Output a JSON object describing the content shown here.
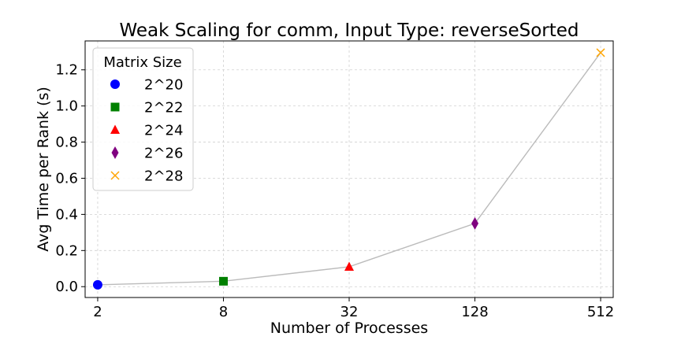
{
  "chart_data": {
    "type": "scatter",
    "title": "Weak Scaling for comm, Input Type: reverseSorted",
    "xlabel": "Number of Processes",
    "ylabel": "Avg Time per Rank (s)",
    "x_scale": "log2",
    "x_ticks": [
      "2",
      "8",
      "32",
      "128",
      "512"
    ],
    "y_ticks": [
      "0.0",
      "0.2",
      "0.4",
      "0.6",
      "0.8",
      "1.0",
      "1.2"
    ],
    "ylim": [
      -0.06,
      1.36
    ],
    "grid": true,
    "line_color": "#bbbbbb",
    "legend": {
      "title": "Matrix Size",
      "placement": "top-left"
    },
    "series": [
      {
        "name": "2^20",
        "x": 2,
        "y": 0.01,
        "marker": "circle",
        "color": "#0000ff"
      },
      {
        "name": "2^22",
        "x": 8,
        "y": 0.03,
        "marker": "square",
        "color": "#008000"
      },
      {
        "name": "2^24",
        "x": 32,
        "y": 0.11,
        "marker": "triangle",
        "color": "#ff0000"
      },
      {
        "name": "2^26",
        "x": 128,
        "y": 0.35,
        "marker": "diamond",
        "color": "#800080"
      },
      {
        "name": "2^28",
        "x": 512,
        "y": 1.295,
        "marker": "x",
        "color": "#ffa500"
      }
    ]
  }
}
